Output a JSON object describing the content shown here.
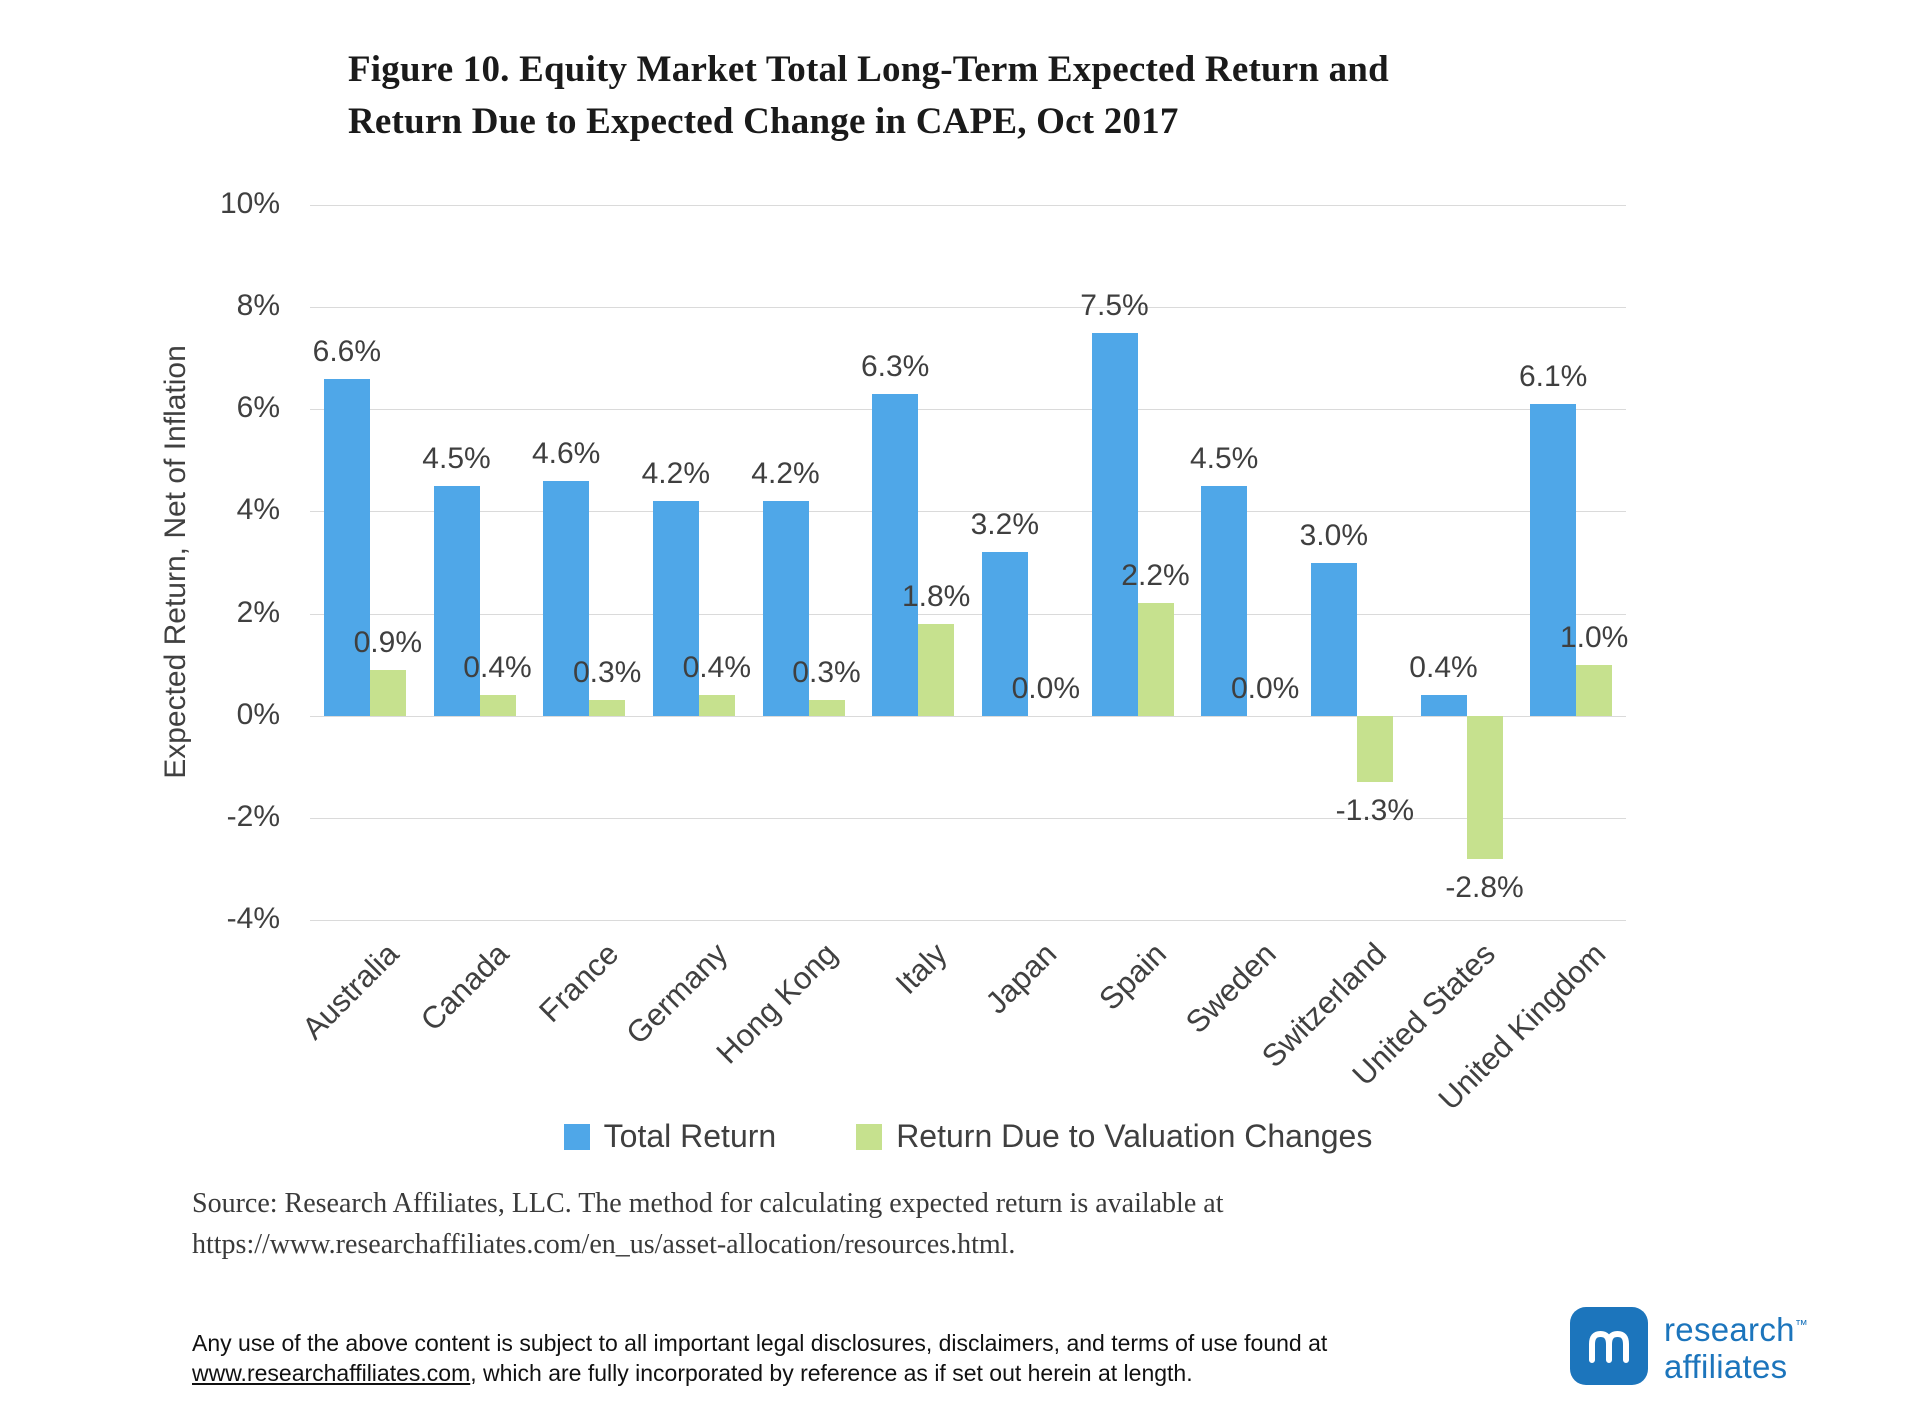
{
  "title": {
    "line1": "Figure 10. Equity Market Total Long-Term Expected Return and",
    "line2": "Return Due to Expected Change in CAPE, Oct 2017"
  },
  "chart_data": {
    "type": "bar",
    "title": "Figure 10. Equity Market Total Long-Term Expected Return and Return Due to Expected Change in CAPE, Oct 2017",
    "xlabel": "",
    "ylabel": "Expected Return, Net of Inflation",
    "ylim": [
      -4,
      10
    ],
    "yticks": [
      10,
      8,
      6,
      4,
      2,
      0,
      -2,
      -4
    ],
    "ytick_labels": [
      "10%",
      "8%",
      "6%",
      "4%",
      "2%",
      "0%",
      "-2%",
      "-4%"
    ],
    "grid": true,
    "legend_position": "bottom",
    "categories": [
      "Australia",
      "Canada",
      "France",
      "Germany",
      "Hong Kong",
      "Italy",
      "Japan",
      "Spain",
      "Sweden",
      "Switzerland",
      "United States",
      "United Kingdom"
    ],
    "series": [
      {
        "name": "Total Return",
        "color": "#4fa7e8",
        "values": [
          6.6,
          4.5,
          4.6,
          4.2,
          4.2,
          6.3,
          3.2,
          7.5,
          4.5,
          3.0,
          0.4,
          6.1
        ],
        "labels": [
          "6.6%",
          "4.5%",
          "4.6%",
          "4.2%",
          "4.2%",
          "6.3%",
          "3.2%",
          "7.5%",
          "4.5%",
          "3.0%",
          "0.4%",
          "6.1%"
        ]
      },
      {
        "name": "Return Due to Valuation Changes",
        "color": "#c6e18e",
        "values": [
          0.9,
          0.4,
          0.3,
          0.4,
          0.3,
          1.8,
          0.0,
          2.2,
          0.0,
          -1.3,
          -2.8,
          1.0
        ],
        "labels": [
          "0.9%",
          "0.4%",
          "0.3%",
          "0.4%",
          "0.3%",
          "1.8%",
          "0.0%",
          "2.2%",
          "0.0%",
          "-1.3%",
          "-2.8%",
          "1.0%"
        ]
      }
    ]
  },
  "legend": {
    "items": [
      {
        "label": "Total Return",
        "color": "#4fa7e8"
      },
      {
        "label": "Return Due to Valuation Changes",
        "color": "#c6e18e"
      }
    ]
  },
  "source": {
    "text": "Source:  Research Affiliates, LLC. The method for calculating expected return is available at https://www.researchaffiliates.com/en_us/asset-allocation/resources.html."
  },
  "footer": {
    "line1": "Any use of the above content is subject to all important legal disclosures, disclaimers, and terms of use found at",
    "link": "www.researchaffiliates.com",
    "rest": ", which are fully incorporated by reference as if set out herein at length."
  },
  "logo": {
    "line1": "research",
    "tm": "™",
    "line2": "affiliates",
    "color": "#1c75bc"
  }
}
